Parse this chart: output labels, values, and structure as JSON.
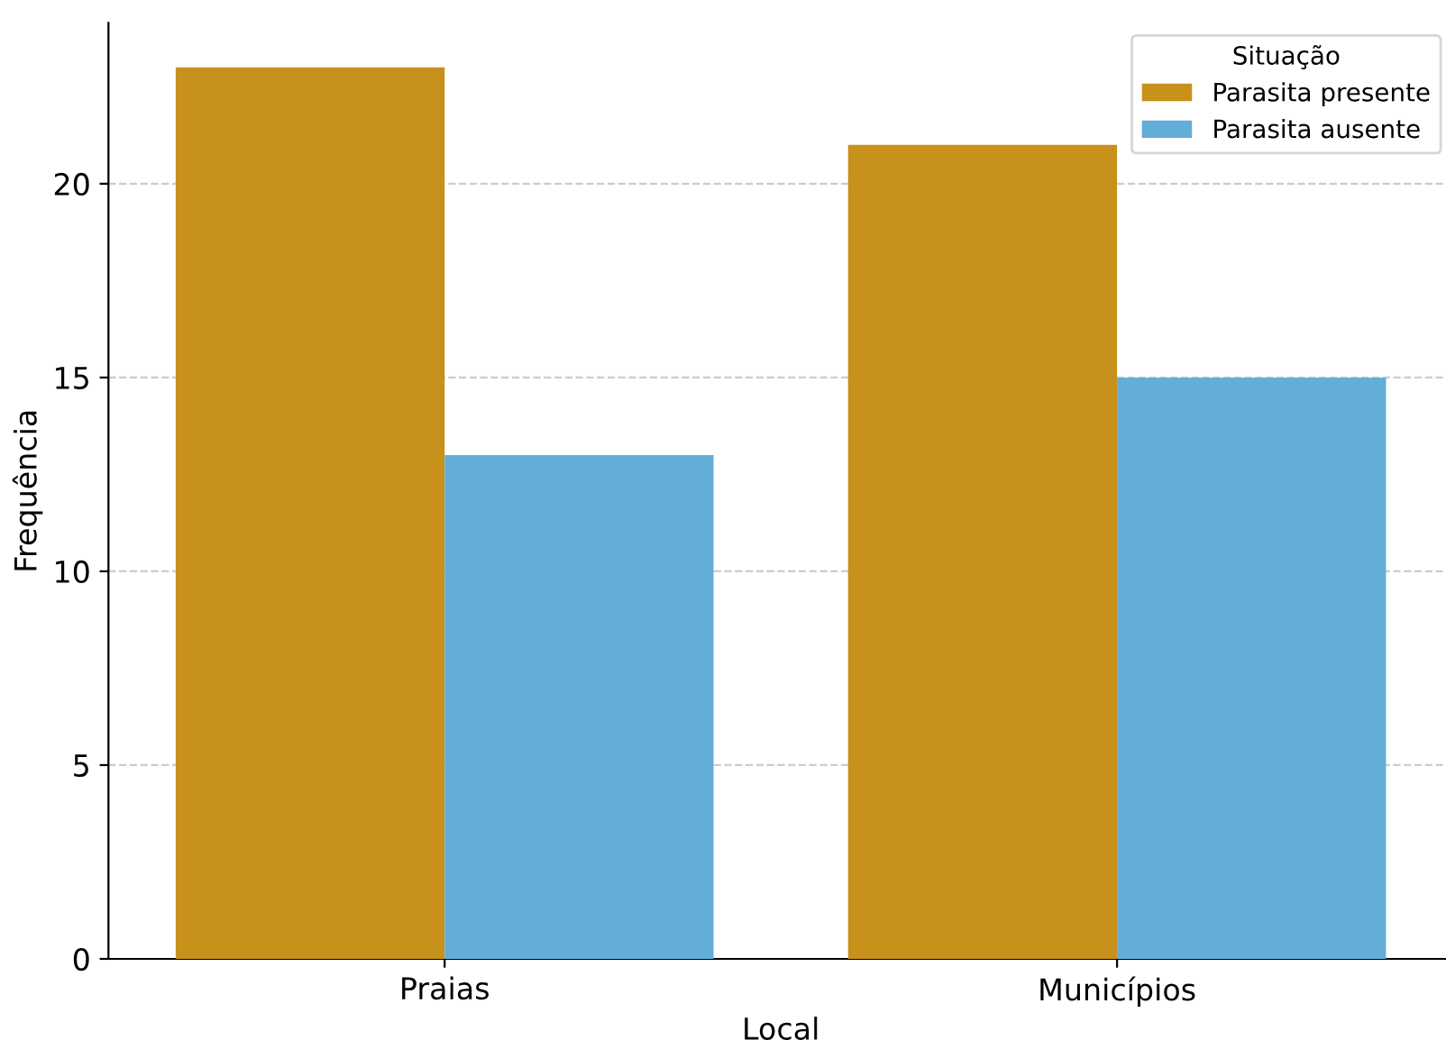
{
  "chart_data": {
    "type": "bar",
    "xlabel": "Local",
    "ylabel": "Frequência",
    "legend_title": "Situação",
    "categories": [
      "Praias",
      "Municípios"
    ],
    "series": [
      {
        "name": "Parasita presente",
        "color": "#c8911c",
        "values": [
          23,
          21
        ]
      },
      {
        "name": "Parasita ausente",
        "color": "#63aed8",
        "values": [
          13,
          15
        ]
      }
    ],
    "ylim": [
      0,
      24.15
    ],
    "yticks": [
      0,
      5,
      10,
      15,
      20
    ],
    "grid": "y",
    "legend": "top right"
  }
}
